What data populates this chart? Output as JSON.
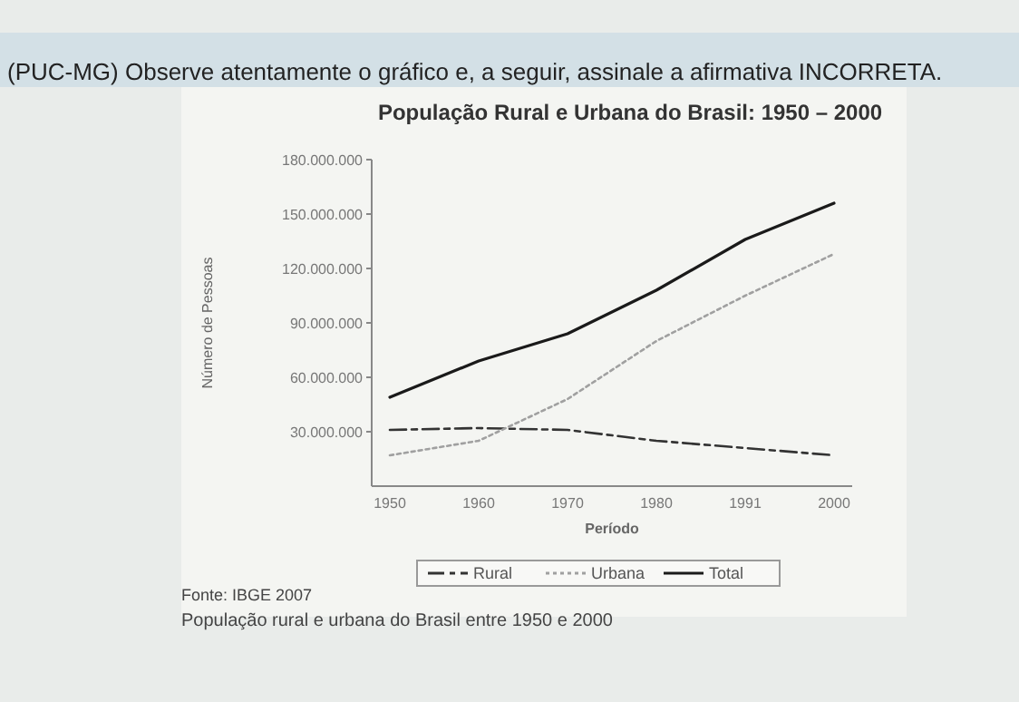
{
  "chart_data": {
    "type": "line",
    "title": "População Rural e Urbana do Brasil: 1950 – 2000",
    "xlabel": "Período",
    "ylabel": "Número de Pessoas",
    "annotations": [
      "(PUC-MG) Observe atentamente o gráfico e, a seguir, assinale a afirmativa INCORRETA.",
      "Fonte: IBGE 2007",
      "População rural e urbana do Brasil entre 1950 e 2000"
    ],
    "categories": [
      "1950",
      "1960",
      "1970",
      "1980",
      "1991",
      "2000"
    ],
    "series": [
      {
        "name": "Rural",
        "color": "#333333",
        "line_style": "dashed",
        "values": [
          31000000,
          32000000,
          31000000,
          25000000,
          21000000,
          17000000
        ]
      },
      {
        "name": "Urbana",
        "color": "#a0a0a0",
        "line_style": "dotted",
        "values": [
          17000000,
          25000000,
          48000000,
          80000000,
          105000000,
          128000000
        ]
      },
      {
        "name": "Total",
        "color": "#1a1a1a",
        "line_style": "solid",
        "values": [
          49000000,
          69000000,
          84000000,
          108000000,
          136000000,
          156000000
        ]
      }
    ],
    "ylim": [
      0,
      180000000
    ],
    "yticks": [
      {
        "value": 30000000,
        "label": "30.000.000"
      },
      {
        "value": 60000000,
        "label": "60.000.000"
      },
      {
        "value": 90000000,
        "label": "90.000.000"
      },
      {
        "value": 120000000,
        "label": "120.000.000"
      },
      {
        "value": 150000000,
        "label": "150.000.000"
      },
      {
        "value": 180000000,
        "label": "180.000.000"
      }
    ],
    "grid": false,
    "legend": "bottom"
  }
}
